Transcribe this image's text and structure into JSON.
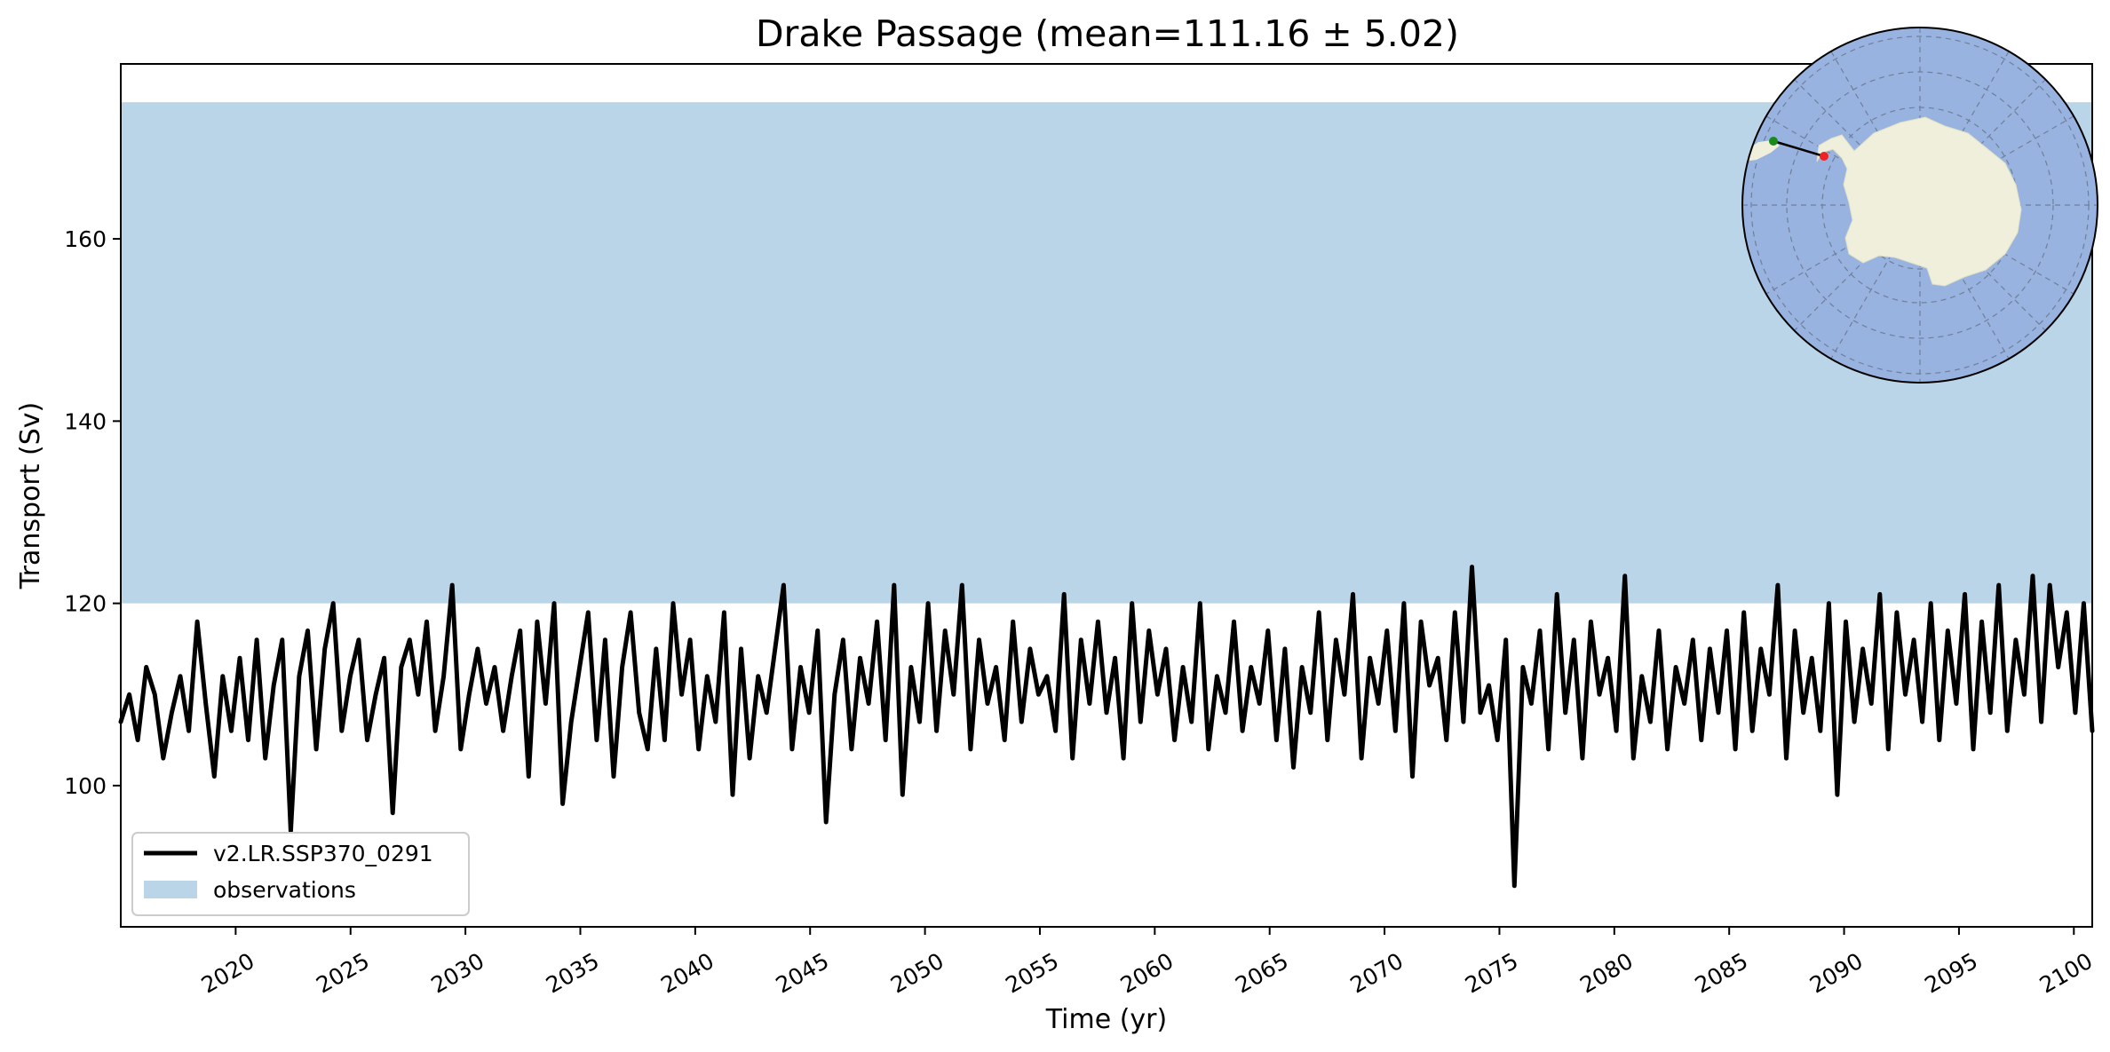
{
  "chart_data": {
    "type": "line",
    "title": "Drake Passage (mean=111.16 ± 5.02)",
    "xlabel": "Time (yr)",
    "ylabel": "Transport (Sv)",
    "xlim": [
      2015.0,
      2100.8
    ],
    "ylim": [
      84.5,
      179.2
    ],
    "x_ticks": [
      2020,
      2025,
      2030,
      2035,
      2040,
      2045,
      2050,
      2055,
      2060,
      2065,
      2070,
      2075,
      2080,
      2085,
      2090,
      2095,
      2100
    ],
    "x_tick_labels": [
      "2020",
      "2025",
      "2030",
      "2035",
      "2040",
      "2045",
      "2050",
      "2055",
      "2060",
      "2065",
      "2070",
      "2075",
      "2080",
      "2085",
      "2090",
      "2095",
      "2100"
    ],
    "y_ticks": [
      100,
      120,
      140,
      160
    ],
    "y_tick_labels": [
      "100",
      "120",
      "140",
      "160"
    ],
    "grid": false,
    "legend_position": "lower-left",
    "observations": {
      "name": "observations",
      "y_range": [
        120,
        175
      ],
      "color": "#bad5e8"
    },
    "series": [
      {
        "name": "v2.LR.SSP370_0291",
        "color": "#000000",
        "x_start": 2015.0,
        "x_end": 2100.8,
        "values": [
          107,
          110,
          105,
          113,
          110,
          103,
          108,
          112,
          106,
          118,
          109,
          101,
          112,
          106,
          114,
          105,
          116,
          103,
          111,
          116,
          95,
          112,
          117,
          104,
          115,
          120,
          106,
          112,
          116,
          105,
          110,
          114,
          97,
          113,
          116,
          110,
          118,
          106,
          112,
          122,
          104,
          110,
          115,
          109,
          113,
          106,
          112,
          117,
          101,
          118,
          109,
          120,
          98,
          107,
          113,
          119,
          105,
          116,
          101,
          113,
          119,
          108,
          104,
          115,
          105,
          120,
          110,
          116,
          104,
          112,
          107,
          119,
          99,
          115,
          103,
          112,
          108,
          115,
          122,
          104,
          113,
          108,
          117,
          96,
          110,
          116,
          104,
          114,
          109,
          118,
          105,
          122,
          99,
          113,
          107,
          120,
          106,
          117,
          110,
          122,
          104,
          116,
          109,
          113,
          105,
          118,
          107,
          115,
          110,
          112,
          106,
          121,
          103,
          116,
          109,
          118,
          108,
          114,
          103,
          120,
          107,
          117,
          110,
          115,
          105,
          113,
          107,
          120,
          104,
          112,
          108,
          118,
          106,
          113,
          109,
          117,
          105,
          115,
          102,
          113,
          108,
          119,
          105,
          116,
          110,
          121,
          103,
          114,
          109,
          117,
          106,
          120,
          101,
          118,
          111,
          114,
          105,
          119,
          107,
          124,
          108,
          111,
          105,
          116,
          89,
          113,
          109,
          117,
          104,
          121,
          108,
          116,
          103,
          118,
          110,
          114,
          106,
          123,
          103,
          112,
          107,
          117,
          104,
          113,
          109,
          116,
          105,
          115,
          108,
          117,
          104,
          119,
          106,
          115,
          110,
          122,
          103,
          117,
          108,
          114,
          106,
          120,
          99,
          118,
          107,
          115,
          109,
          121,
          104,
          119,
          110,
          116,
          107,
          120,
          105,
          117,
          109,
          121,
          104,
          118,
          108,
          122,
          106,
          116,
          110,
          123,
          107,
          122,
          113,
          119,
          108,
          120,
          106
        ],
        "points_per_year": 2.73
      }
    ],
    "inset_map": {
      "projection": "south-polar-stereographic",
      "ocean_color": "#98b3df",
      "land_color": "#efefdb",
      "section_start_color": "#1a8a1a",
      "section_end_color": "#ee2222"
    }
  }
}
